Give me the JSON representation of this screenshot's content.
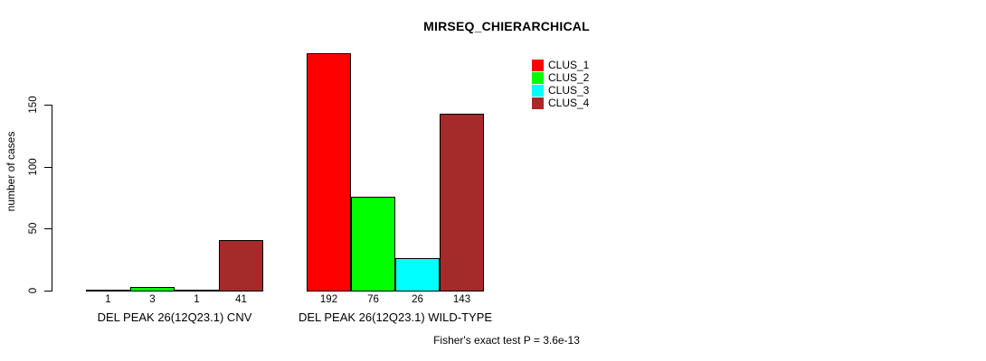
{
  "title": "MIRSEQ_CHIERARCHICAL",
  "chart_data": {
    "type": "bar",
    "title": "MIRSEQ_CHIERARCHICAL",
    "xlabel": "",
    "ylabel": "number of cases",
    "ylim": [
      0,
      195
    ],
    "yticks": [
      0,
      50,
      100,
      150
    ],
    "grid": false,
    "legend_position": "top-right",
    "categories": [
      "DEL PEAK 26(12Q23.1) CNV",
      "DEL PEAK 26(12Q23.1) WILD-TYPE"
    ],
    "series": [
      {
        "name": "CLUS_1",
        "color": "#ff0000",
        "values": [
          1,
          192
        ]
      },
      {
        "name": "CLUS_2",
        "color": "#00ff00",
        "values": [
          3,
          76
        ]
      },
      {
        "name": "CLUS_3",
        "color": "#00ffff",
        "values": [
          1,
          26
        ]
      },
      {
        "name": "CLUS_4",
        "color": "#a52a2a",
        "values": [
          41,
          143
        ]
      }
    ],
    "bar_value_labels": [
      [
        1,
        3,
        1,
        41
      ],
      [
        192,
        76,
        26,
        143
      ]
    ],
    "annotation": "Fisher's exact test P = 3.6e-13"
  }
}
